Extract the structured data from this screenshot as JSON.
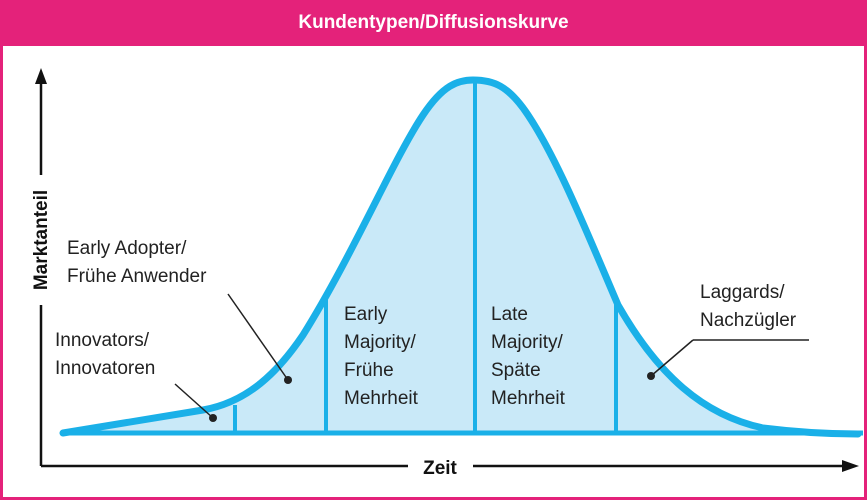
{
  "title": "Kundentypen/Diffusionskurve",
  "axes": {
    "x_label": "Zeit",
    "y_label": "Marktanteil"
  },
  "segments": {
    "innovators": [
      "Innovators/",
      "Innovatoren"
    ],
    "early_adopters": [
      "Early Adopter/",
      "Frühe Anwender"
    ],
    "early_majority": [
      "Early",
      "Majority/",
      "Frühe",
      "Mehrheit"
    ],
    "late_majority": [
      "Late",
      "Majority/",
      "Späte",
      "Mehrheit"
    ],
    "laggards": [
      "Laggards/",
      "Nachzügler"
    ]
  },
  "colors": {
    "header": "#e4227a",
    "curve": "#1ab0e8",
    "fill": "#c9e9f8"
  }
}
